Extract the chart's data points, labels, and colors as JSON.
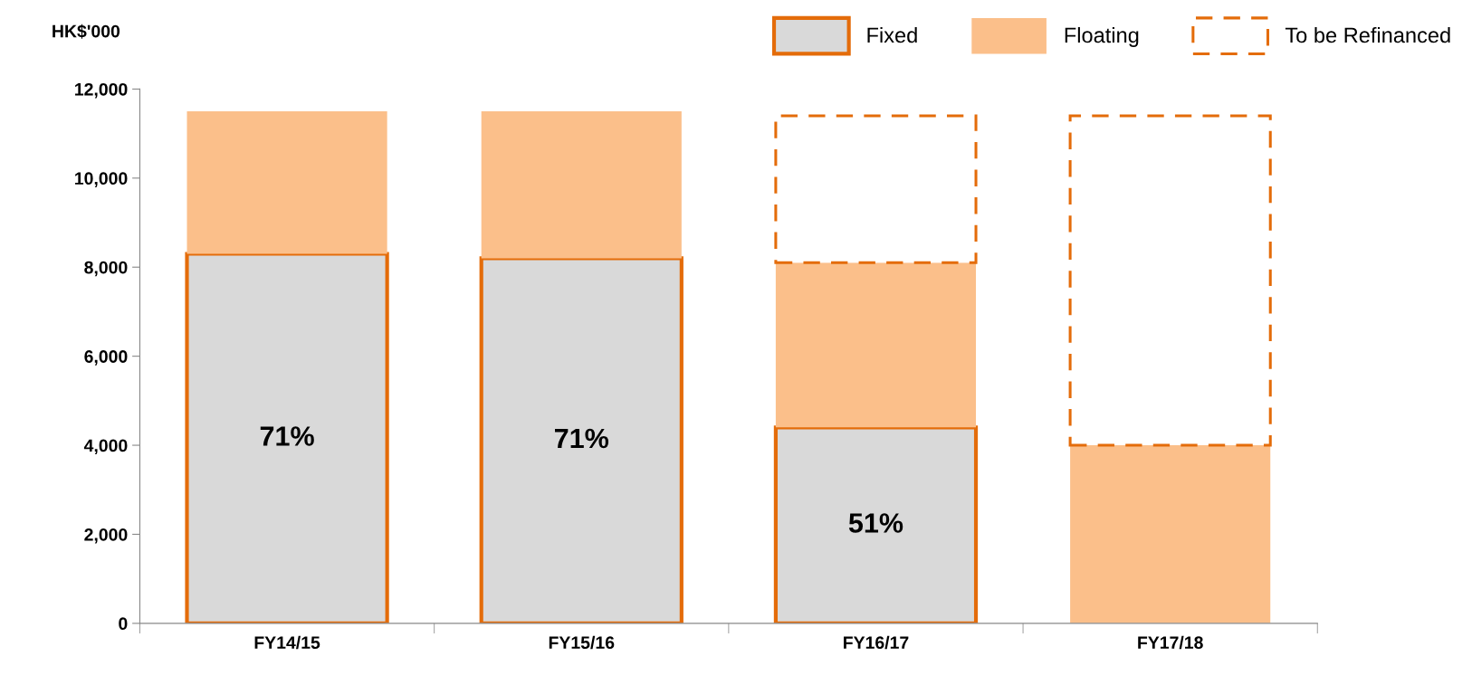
{
  "chart_data": {
    "type": "bar",
    "stacked": true,
    "ylabel": "HK$'000",
    "categories": [
      "FY14/15",
      "FY15/16",
      "FY16/17",
      "FY17/18"
    ],
    "series": [
      {
        "name": "Fixed",
        "color": "#d9d9d9",
        "values": [
          8300,
          8200,
          4400,
          0
        ]
      },
      {
        "name": "Floating",
        "color": "#fbbf8a",
        "values": [
          3200,
          3300,
          3700,
          4000
        ]
      },
      {
        "name": "To be Refinanced",
        "color": "#ffffff",
        "line_style": "dashed",
        "values": [
          0,
          0,
          3300,
          7400
        ]
      }
    ],
    "annotations": [
      "71%",
      "71%",
      "51%"
    ],
    "ylim": [
      0,
      12000
    ],
    "yticks": [
      {
        "value": 0,
        "label": "0"
      },
      {
        "value": 2000,
        "label": "2,000"
      },
      {
        "value": 4000,
        "label": "4,000"
      },
      {
        "value": 6000,
        "label": "6,000"
      },
      {
        "value": 8000,
        "label": "8,000"
      },
      {
        "value": 10000,
        "label": "10,000"
      },
      {
        "value": 12000,
        "label": "12,000"
      }
    ],
    "grid": false,
    "legend": "top right"
  }
}
